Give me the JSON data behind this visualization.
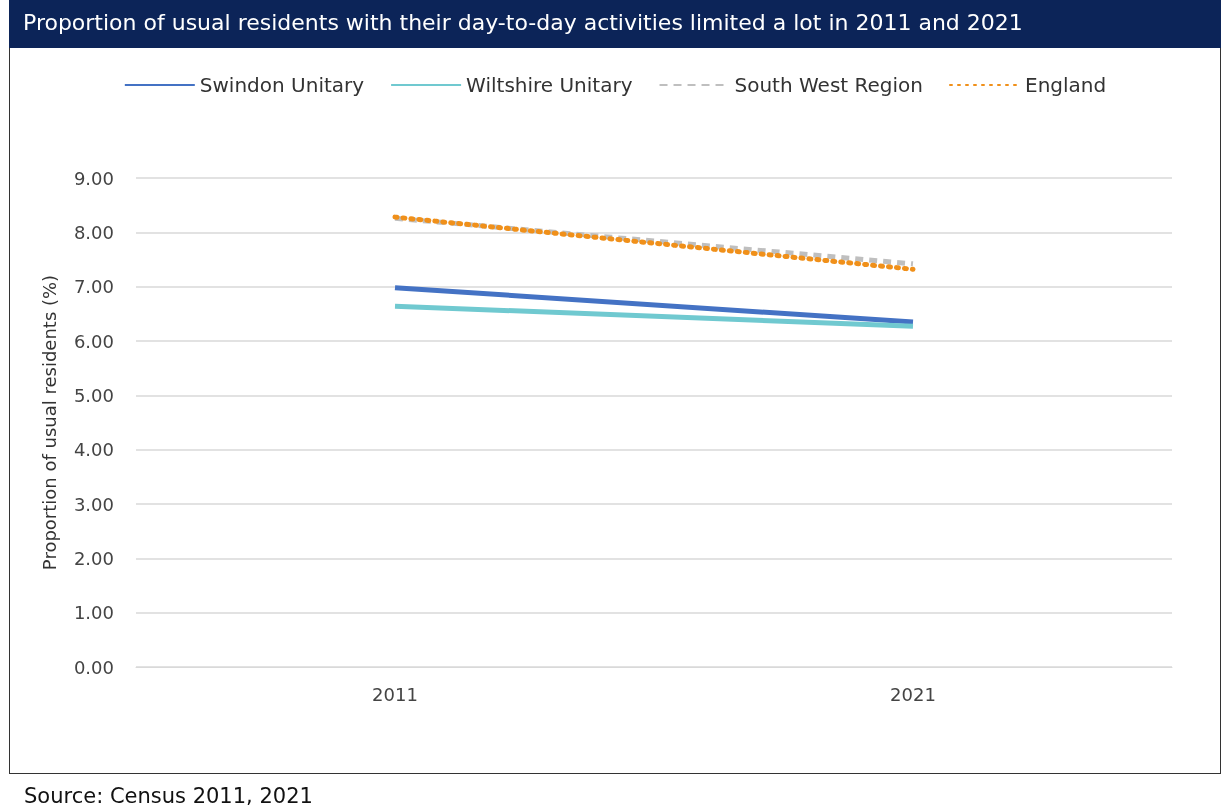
{
  "chart_data": {
    "type": "line",
    "title": "Proportion of usual residents with their day-to-day activities limited a lot in 2011 and 2021",
    "ylabel": "Proportion of usual residents (%)",
    "categories": [
      "2011",
      "2021"
    ],
    "series": [
      {
        "name": "Swindon Unitary",
        "color": "#4472c4",
        "values": [
          6.98,
          6.35
        ],
        "line_style": "solid"
      },
      {
        "name": "Wiltshire Unitary",
        "color": "#70c9d0",
        "values": [
          6.64,
          6.27
        ],
        "line_style": "solid"
      },
      {
        "name": "South West Region",
        "color": "#bfbfbf",
        "values": [
          8.26,
          7.42
        ],
        "line_style": "dashed"
      },
      {
        "name": "England",
        "color": "#f0901a",
        "values": [
          8.28,
          7.32
        ],
        "line_style": "dotted"
      }
    ],
    "ylim": [
      0,
      9
    ],
    "yticks": [
      {
        "value": 0,
        "label": "0.00"
      },
      {
        "value": 1,
        "label": "1.00"
      },
      {
        "value": 2,
        "label": "2.00"
      },
      {
        "value": 3,
        "label": "3.00"
      },
      {
        "value": 4,
        "label": "4.00"
      },
      {
        "value": 5,
        "label": "5.00"
      },
      {
        "value": 6,
        "label": "6.00"
      },
      {
        "value": 7,
        "label": "7.00"
      },
      {
        "value": 8,
        "label": "8.00"
      },
      {
        "value": 9,
        "label": "9.00"
      }
    ],
    "grid": "y",
    "legend": "top",
    "marker": "none",
    "annotations": [
      "Source: Census 2011, 2021"
    ]
  }
}
